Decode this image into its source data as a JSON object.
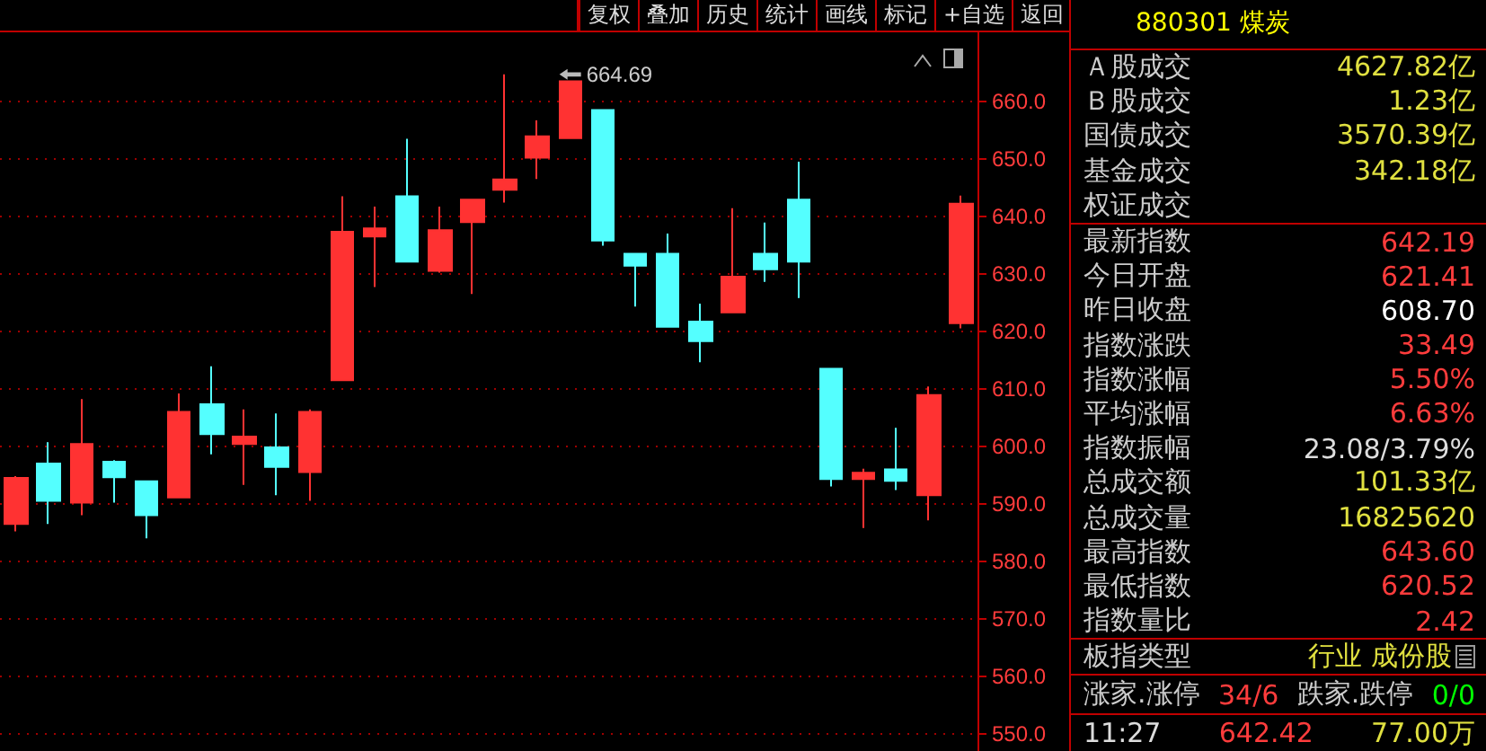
{
  "chart_data": [
    {
      "type": "candlestick",
      "categories": [
        null,
        null,
        null,
        null,
        null,
        null,
        null,
        null,
        null,
        null,
        null,
        null,
        null,
        null,
        null,
        null,
        null,
        null,
        null,
        null,
        null,
        null,
        null,
        null,
        null,
        null,
        null,
        null,
        null,
        null
      ],
      "ohlc": [
        [
          586.5,
          594.8,
          585.2,
          594.5
        ],
        [
          597.0,
          600.7,
          586.5,
          590.5
        ],
        [
          590.2,
          608.2,
          588.0,
          600.4
        ],
        [
          597.3,
          597.6,
          590.2,
          594.6
        ],
        [
          593.9,
          593.9,
          584.0,
          588.0
        ],
        [
          591.1,
          609.2,
          591.1,
          606.0
        ],
        [
          607.3,
          613.9,
          598.6,
          602.1
        ],
        [
          600.4,
          606.4,
          593.3,
          601.7
        ],
        [
          599.8,
          605.7,
          591.5,
          596.4
        ],
        [
          595.5,
          606.4,
          590.5,
          606.0
        ],
        [
          611.5,
          643.5,
          611.5,
          637.3
        ],
        [
          636.5,
          641.7,
          627.7,
          637.9
        ],
        [
          643.5,
          653.5,
          632.1,
          632.1
        ],
        [
          630.5,
          641.7,
          630.2,
          637.6
        ],
        [
          639.0,
          642.9,
          626.5,
          642.9
        ],
        [
          644.6,
          664.69,
          642.4,
          646.4
        ],
        [
          650.2,
          656.7,
          646.5,
          653.9
        ],
        [
          653.6,
          663.5,
          653.6,
          663.5
        ],
        [
          658.5,
          658.5,
          634.9,
          635.8
        ],
        [
          633.5,
          633.5,
          624.3,
          631.4
        ],
        [
          633.5,
          637.0,
          620.8,
          620.8
        ],
        [
          621.7,
          624.8,
          614.6,
          618.3
        ],
        [
          623.3,
          641.4,
          623.3,
          629.5
        ],
        [
          633.5,
          638.9,
          628.6,
          630.8
        ],
        [
          642.9,
          649.5,
          625.8,
          632.1
        ],
        [
          613.5,
          613.5,
          593.0,
          594.3
        ],
        [
          594.3,
          596.1,
          585.8,
          595.4
        ],
        [
          596.0,
          603.2,
          592.4,
          594.0
        ],
        [
          591.5,
          610.4,
          587.1,
          608.9
        ],
        [
          621.41,
          643.6,
          620.52,
          642.19
        ]
      ],
      "colors": [
        "#ff3232",
        "#54ffff",
        "#ff3232",
        "#54ffff",
        "#54ffff",
        "#ff3232",
        "#54ffff",
        "#ff3232",
        "#54ffff",
        "#ff3232",
        "#ff3232",
        "#ff3232",
        "#54ffff",
        "#ff3232",
        "#ff3232",
        "#ff3232",
        "#ff3232",
        "#ff3232",
        "#54ffff",
        "#54ffff",
        "#54ffff",
        "#54ffff",
        "#ff3232",
        "#54ffff",
        "#54ffff",
        "#54ffff",
        "#ff3232",
        "#54ffff",
        "#ff3232",
        "#ff3232"
      ],
      "ylim": [
        547,
        672
      ],
      "yticks": [
        {
          "value": 550,
          "label": "550.0"
        },
        {
          "value": 560,
          "label": "560.0"
        },
        {
          "value": 570,
          "label": "570.0"
        },
        {
          "value": 580,
          "label": "580.0"
        },
        {
          "value": 590,
          "label": "590.0"
        },
        {
          "value": 600,
          "label": "600.0"
        },
        {
          "value": 610,
          "label": "610.0"
        },
        {
          "value": 620,
          "label": "620.0"
        },
        {
          "value": 630,
          "label": "630.0"
        },
        {
          "value": 640,
          "label": "640.0"
        },
        {
          "value": 650,
          "label": "650.0"
        },
        {
          "value": 660,
          "label": "660.0"
        }
      ],
      "grid": "y",
      "tick_labels": "y",
      "annotations": [
        "664.69",
        "复权",
        "叠加",
        "历史",
        "统计",
        "画线",
        "标记",
        "+自选",
        "返回"
      ]
    },
    {
      "type": "other",
      "title": "880301 煤炭",
      "annotations": [
        "Ａ股成交",
        "4627.82亿",
        "Ｂ股成交",
        "1.23亿",
        "国债成交",
        "3570.39亿",
        "基金成交",
        "342.18亿",
        "权证成交",
        "最新指数",
        "642.19",
        "今日开盘",
        "621.41",
        "昨日收盘",
        "608.70",
        "指数涨跌",
        "33.49",
        "指数涨幅",
        "5.50%",
        "平均涨幅",
        "6.63%",
        "指数振幅",
        "23.08/3.79%",
        "总成交额",
        "101.33亿",
        "总成交量",
        "16825620",
        "最高指数",
        "643.60",
        "最低指数",
        "620.52",
        "指数量比",
        "2.42",
        "板指类型",
        "行业 成份股",
        "涨家.涨停",
        "34/6",
        "跌家.跌停",
        "0/0",
        "11:27",
        "642.42",
        "77.00万"
      ]
    }
  ]
}
